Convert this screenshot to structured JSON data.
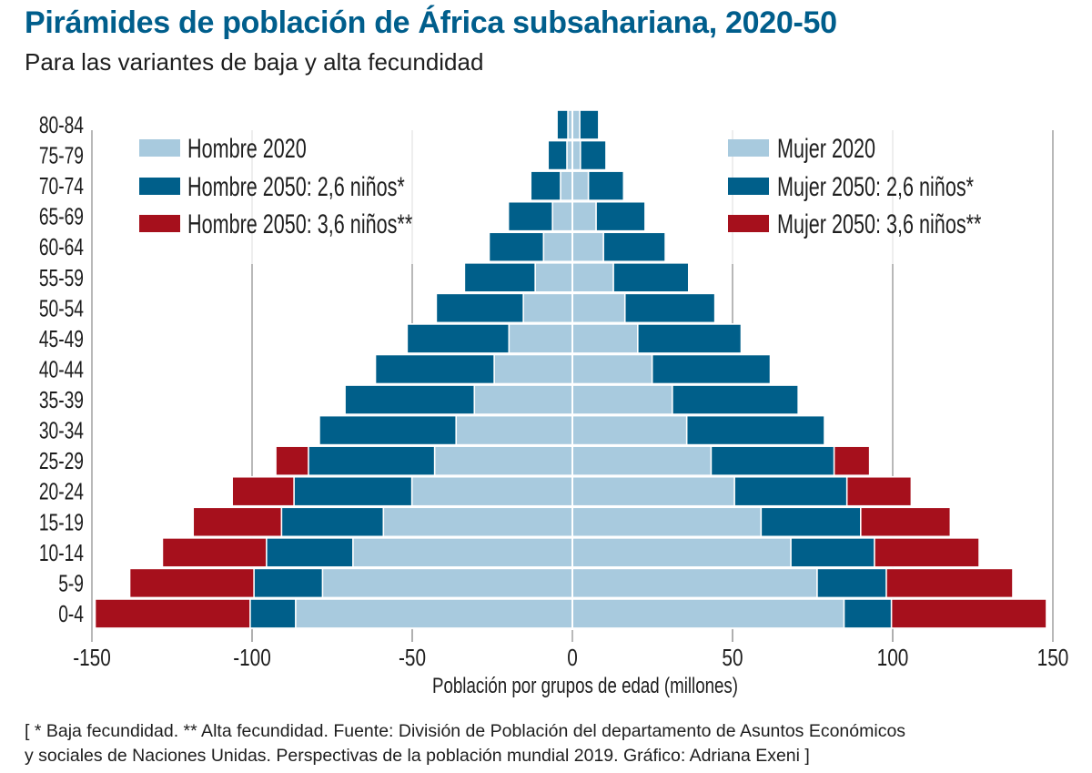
{
  "title": "Pirámides de población de África subsahariana, 2020-50",
  "subtitle": "Para las variantes de baja y alta fecundidad",
  "footer": {
    "line1": "[ * Baja fecundidad. ** Alta fecundidad. Fuente: División de Población del departamento de Asuntos Económicos",
    "line2": "y sociales de Naciones Unidas. Perspectivas de la población mundial 2019. Gráfico: Adriana Exeni ]"
  },
  "colors": {
    "title": "#005e8c",
    "light": "#a8cade",
    "blue": "#005f8a",
    "red": "#a6101c",
    "text": "#1e1e1e",
    "grid": "#8a8a8a"
  },
  "chart_data": {
    "type": "bar",
    "orientation": "horizontal-pyramid",
    "title": "Pirámides de población de África subsahariana, 2020-50",
    "subtitle": "Para las variantes de baja y alta fecundidad",
    "xlabel": "Población por grupos de edad (millones)",
    "ylabel": "",
    "xlim": [
      -150,
      150
    ],
    "xticks": [
      -150,
      -100,
      -50,
      0,
      50,
      100,
      150
    ],
    "xtick_labels": [
      "-150",
      "-100",
      "-50",
      "0",
      "50",
      "100",
      "150"
    ],
    "grid": true,
    "categories": [
      "80-84",
      "75-79",
      "70-74",
      "65-69",
      "60-64",
      "55-59",
      "50-54",
      "45-49",
      "40-44",
      "35-39",
      "30-34",
      "25-29",
      "20-24",
      "15-19",
      "10-14",
      "5-9",
      "0-4"
    ],
    "legend": {
      "left": [
        "Hombre 2020",
        "Hombre 2050: 2,6 niños*",
        "Hombre 2050: 3,6 niños**"
      ],
      "right": [
        "Mujer 2020",
        "Mujer 2050: 2,6 niños*",
        "Mujer 2050: 3,6 niños**"
      ],
      "placement": "top-left and top-right"
    },
    "series": [
      {
        "name": "Hombre 2020",
        "side": "male",
        "color_key": "light",
        "values": [
          -1.4,
          -1.7,
          -3.7,
          -6.2,
          -9.0,
          -11.6,
          -15.3,
          -19.8,
          -24.4,
          -30.6,
          -36.3,
          -43.0,
          -50.1,
          -59.0,
          -68.5,
          -78.0,
          -86.4
        ]
      },
      {
        "name": "Hombre 2050: 2,6 niños*",
        "side": "male",
        "color_key": "blue",
        "values": [
          -4.8,
          -7.6,
          -13.0,
          -20.0,
          -26.0,
          -33.7,
          -42.5,
          -51.6,
          -61.5,
          -71.0,
          -79.0,
          -82.4,
          -86.9,
          -90.8,
          -95.5,
          -99.4,
          -100.6
        ]
      },
      {
        "name": "Hombre 2050: 3,6 niños**",
        "side": "male",
        "color_key": "red",
        "values": [
          -4.8,
          -7.6,
          -13.0,
          -20.0,
          -26.0,
          -33.7,
          -42.5,
          -51.6,
          -61.5,
          -71.0,
          -79.0,
          -92.6,
          -106.2,
          -118.4,
          -128.0,
          -138.2,
          -149.0
        ]
      },
      {
        "name": "Mujer 2020",
        "side": "female",
        "color_key": "light",
        "values": [
          2.3,
          2.5,
          5.0,
          7.4,
          9.7,
          12.8,
          16.4,
          20.4,
          24.9,
          31.2,
          35.7,
          43.3,
          50.6,
          58.9,
          68.2,
          76.4,
          84.8
        ]
      },
      {
        "name": "Mujer 2050: 2,6 niños*",
        "side": "female",
        "color_key": "blue",
        "values": [
          8.2,
          10.5,
          16.0,
          22.7,
          29.0,
          36.3,
          44.5,
          52.7,
          61.8,
          70.5,
          78.7,
          81.7,
          85.7,
          90.0,
          94.3,
          98.0,
          99.6
        ]
      },
      {
        "name": "Mujer 2050: 3,6 niños**",
        "side": "female",
        "color_key": "red",
        "values": [
          8.2,
          10.5,
          16.0,
          22.7,
          29.0,
          36.3,
          44.5,
          52.7,
          61.8,
          70.5,
          78.7,
          92.8,
          105.8,
          118.0,
          127.0,
          137.5,
          148.0
        ]
      }
    ]
  }
}
